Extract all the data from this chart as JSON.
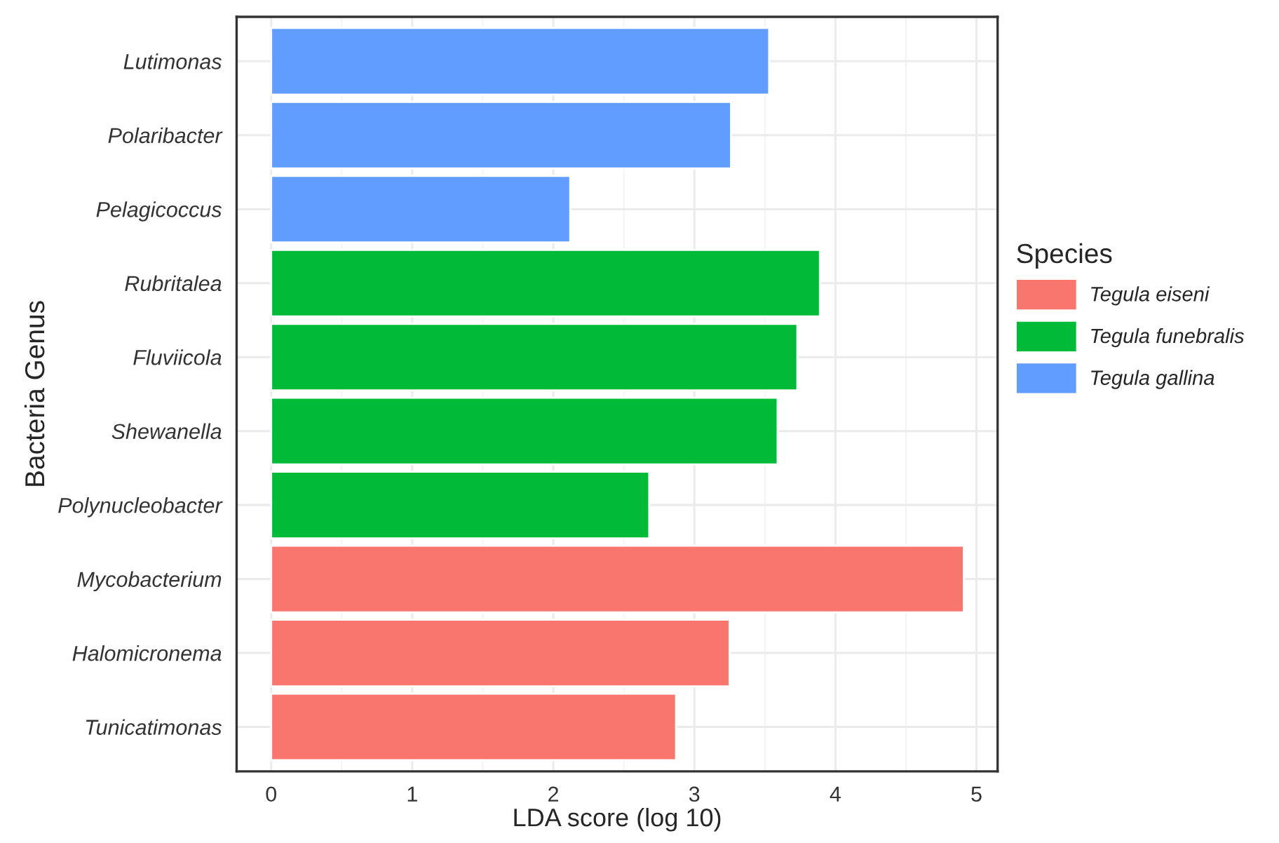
{
  "chart_data": {
    "type": "bar",
    "orientation": "horizontal",
    "xlabel": "LDA score (log 10)",
    "ylabel": "Bacteria Genus",
    "legend_title": "Species",
    "categories": [
      "Lutimonas",
      "Polaribacter",
      "Pelagicoccus",
      "Rubritalea",
      "Fluviicola",
      "Shewanella",
      "Polynucleobacter",
      "Mycobacterium",
      "Halomicronema",
      "Tunicatimonas"
    ],
    "series": [
      {
        "name": "Tegula eiseni",
        "color": "#f8766d",
        "values": [
          null,
          null,
          null,
          null,
          null,
          null,
          null,
          4.91,
          3.25,
          2.87
        ]
      },
      {
        "name": "Tegula funebralis",
        "color": "#00ba38",
        "values": [
          null,
          null,
          null,
          3.89,
          3.73,
          3.59,
          2.68,
          null,
          null,
          null
        ]
      },
      {
        "name": "Tegula gallina",
        "color": "#619cff",
        "values": [
          3.53,
          3.26,
          2.12,
          null,
          null,
          null,
          null,
          null,
          null,
          null
        ]
      }
    ],
    "xlim": [
      -0.245,
      5.15
    ],
    "xticks": [
      0,
      1,
      2,
      3,
      4,
      5
    ],
    "grid": true,
    "legend": "right"
  }
}
